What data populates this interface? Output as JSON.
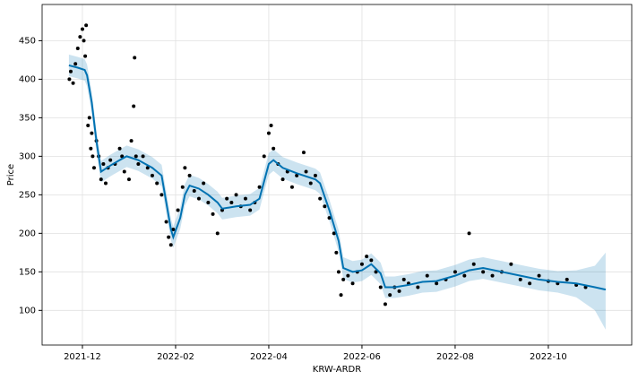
{
  "chart_data": {
    "type": "forecast",
    "x_label": "KRW-ARDR",
    "y_label": "Price",
    "xlim": [
      -0.865,
      11.79
    ],
    "xticks": [
      {
        "value": 0,
        "label": "2021-12"
      },
      {
        "value": 2,
        "label": "2022-02"
      },
      {
        "value": 4,
        "label": "2022-04"
      },
      {
        "value": 6,
        "label": "2022-06"
      },
      {
        "value": 8,
        "label": "2022-08"
      },
      {
        "value": 10,
        "label": "2022-10"
      }
    ],
    "ylim": [
      55,
      497
    ],
    "yticks": [
      100,
      150,
      200,
      250,
      300,
      350,
      400,
      450
    ],
    "grid": true,
    "observed": {
      "color": "#000000",
      "x": [
        -0.28,
        -0.25,
        -0.2,
        -0.15,
        -0.1,
        -0.05,
        0.0,
        0.03,
        0.06,
        0.08,
        0.12,
        0.15,
        0.18,
        0.2,
        0.22,
        0.25,
        0.3,
        0.35,
        0.4,
        0.45,
        0.5,
        0.55,
        0.6,
        0.7,
        0.8,
        0.85,
        0.9,
        1.0,
        1.05,
        1.1,
        1.12,
        1.15,
        1.2,
        1.3,
        1.4,
        1.5,
        1.6,
        1.7,
        1.8,
        1.85,
        1.9,
        1.95,
        2.05,
        2.15,
        2.2,
        2.3,
        2.4,
        2.5,
        2.6,
        2.7,
        2.8,
        2.9,
        3.0,
        3.1,
        3.2,
        3.3,
        3.4,
        3.5,
        3.6,
        3.7,
        3.8,
        3.9,
        4.0,
        4.05,
        4.1,
        4.2,
        4.3,
        4.4,
        4.5,
        4.6,
        4.75,
        4.8,
        4.9,
        5.0,
        5.1,
        5.2,
        5.3,
        5.4,
        5.45,
        5.5,
        5.55,
        5.6,
        5.7,
        5.8,
        5.9,
        6.0,
        6.1,
        6.2,
        6.3,
        6.4,
        6.5,
        6.6,
        6.7,
        6.8,
        6.9,
        7.0,
        7.2,
        7.4,
        7.6,
        7.8,
        8.0,
        8.2,
        8.3,
        8.4,
        8.6,
        8.8,
        9.0,
        9.2,
        9.4,
        9.6,
        9.8,
        10.0,
        10.2,
        10.4,
        10.6,
        10.8
      ],
      "values": [
        400,
        410,
        395,
        420,
        440,
        455,
        465,
        450,
        430,
        470,
        340,
        350,
        310,
        330,
        300,
        285,
        320,
        300,
        270,
        290,
        265,
        285,
        295,
        290,
        310,
        300,
        280,
        270,
        320,
        365,
        428,
        300,
        290,
        300,
        285,
        275,
        265,
        250,
        215,
        195,
        185,
        205,
        230,
        260,
        285,
        275,
        255,
        245,
        265,
        240,
        225,
        200,
        230,
        245,
        240,
        250,
        235,
        245,
        230,
        240,
        260,
        300,
        330,
        340,
        310,
        290,
        270,
        280,
        260,
        275,
        305,
        280,
        265,
        275,
        245,
        235,
        220,
        200,
        175,
        150,
        120,
        140,
        145,
        135,
        150,
        160,
        170,
        165,
        150,
        130,
        108,
        120,
        130,
        125,
        140,
        135,
        130,
        145,
        135,
        140,
        150,
        145,
        200,
        160,
        150,
        145,
        150,
        160,
        140,
        135,
        145,
        138,
        135,
        140,
        133,
        130
      ]
    },
    "forecast": {
      "color": "#0072B2",
      "x": [
        -0.29,
        -0.1,
        0.05,
        0.1,
        0.2,
        0.3,
        0.4,
        0.6,
        0.8,
        0.95,
        1.2,
        1.5,
        1.7,
        1.8,
        1.9,
        1.95,
        2.1,
        2.2,
        2.3,
        2.5,
        2.7,
        2.9,
        3.0,
        3.3,
        3.6,
        3.8,
        4.0,
        4.1,
        4.3,
        4.6,
        5.0,
        5.1,
        5.3,
        5.5,
        5.6,
        5.8,
        6.0,
        6.2,
        6.4,
        6.5,
        6.7,
        7.0,
        7.3,
        7.6,
        8.0,
        8.3,
        8.6,
        9.0,
        9.4,
        9.8,
        10.2,
        10.6,
        11.0,
        11.23
      ],
      "values": [
        418,
        415,
        412,
        405,
        370,
        320,
        280,
        288,
        295,
        300,
        295,
        285,
        275,
        240,
        205,
        195,
        220,
        250,
        262,
        258,
        250,
        240,
        232,
        235,
        237,
        245,
        290,
        295,
        285,
        278,
        270,
        265,
        230,
        190,
        155,
        150,
        152,
        160,
        148,
        130,
        130,
        133,
        137,
        138,
        145,
        152,
        155,
        150,
        145,
        140,
        137,
        135,
        130,
        127
      ],
      "lower": [
        404,
        401,
        398,
        391,
        356,
        306,
        266,
        274,
        281,
        286,
        281,
        271,
        261,
        226,
        191,
        181,
        206,
        236,
        248,
        244,
        236,
        226,
        218,
        221,
        223,
        231,
        276,
        281,
        271,
        264,
        256,
        251,
        216,
        176,
        141,
        136,
        138,
        146,
        134,
        116,
        116,
        119,
        123,
        124,
        131,
        138,
        141,
        136,
        131,
        126,
        123,
        117,
        100,
        75
      ],
      "upper": [
        432,
        429,
        426,
        419,
        384,
        334,
        294,
        302,
        309,
        314,
        309,
        299,
        289,
        254,
        219,
        209,
        234,
        264,
        276,
        272,
        264,
        254,
        246,
        249,
        251,
        259,
        304,
        309,
        299,
        292,
        284,
        279,
        244,
        204,
        169,
        164,
        166,
        174,
        162,
        144,
        144,
        147,
        151,
        152,
        159,
        166,
        169,
        164,
        159,
        154,
        151,
        152,
        158,
        175
      ]
    }
  }
}
